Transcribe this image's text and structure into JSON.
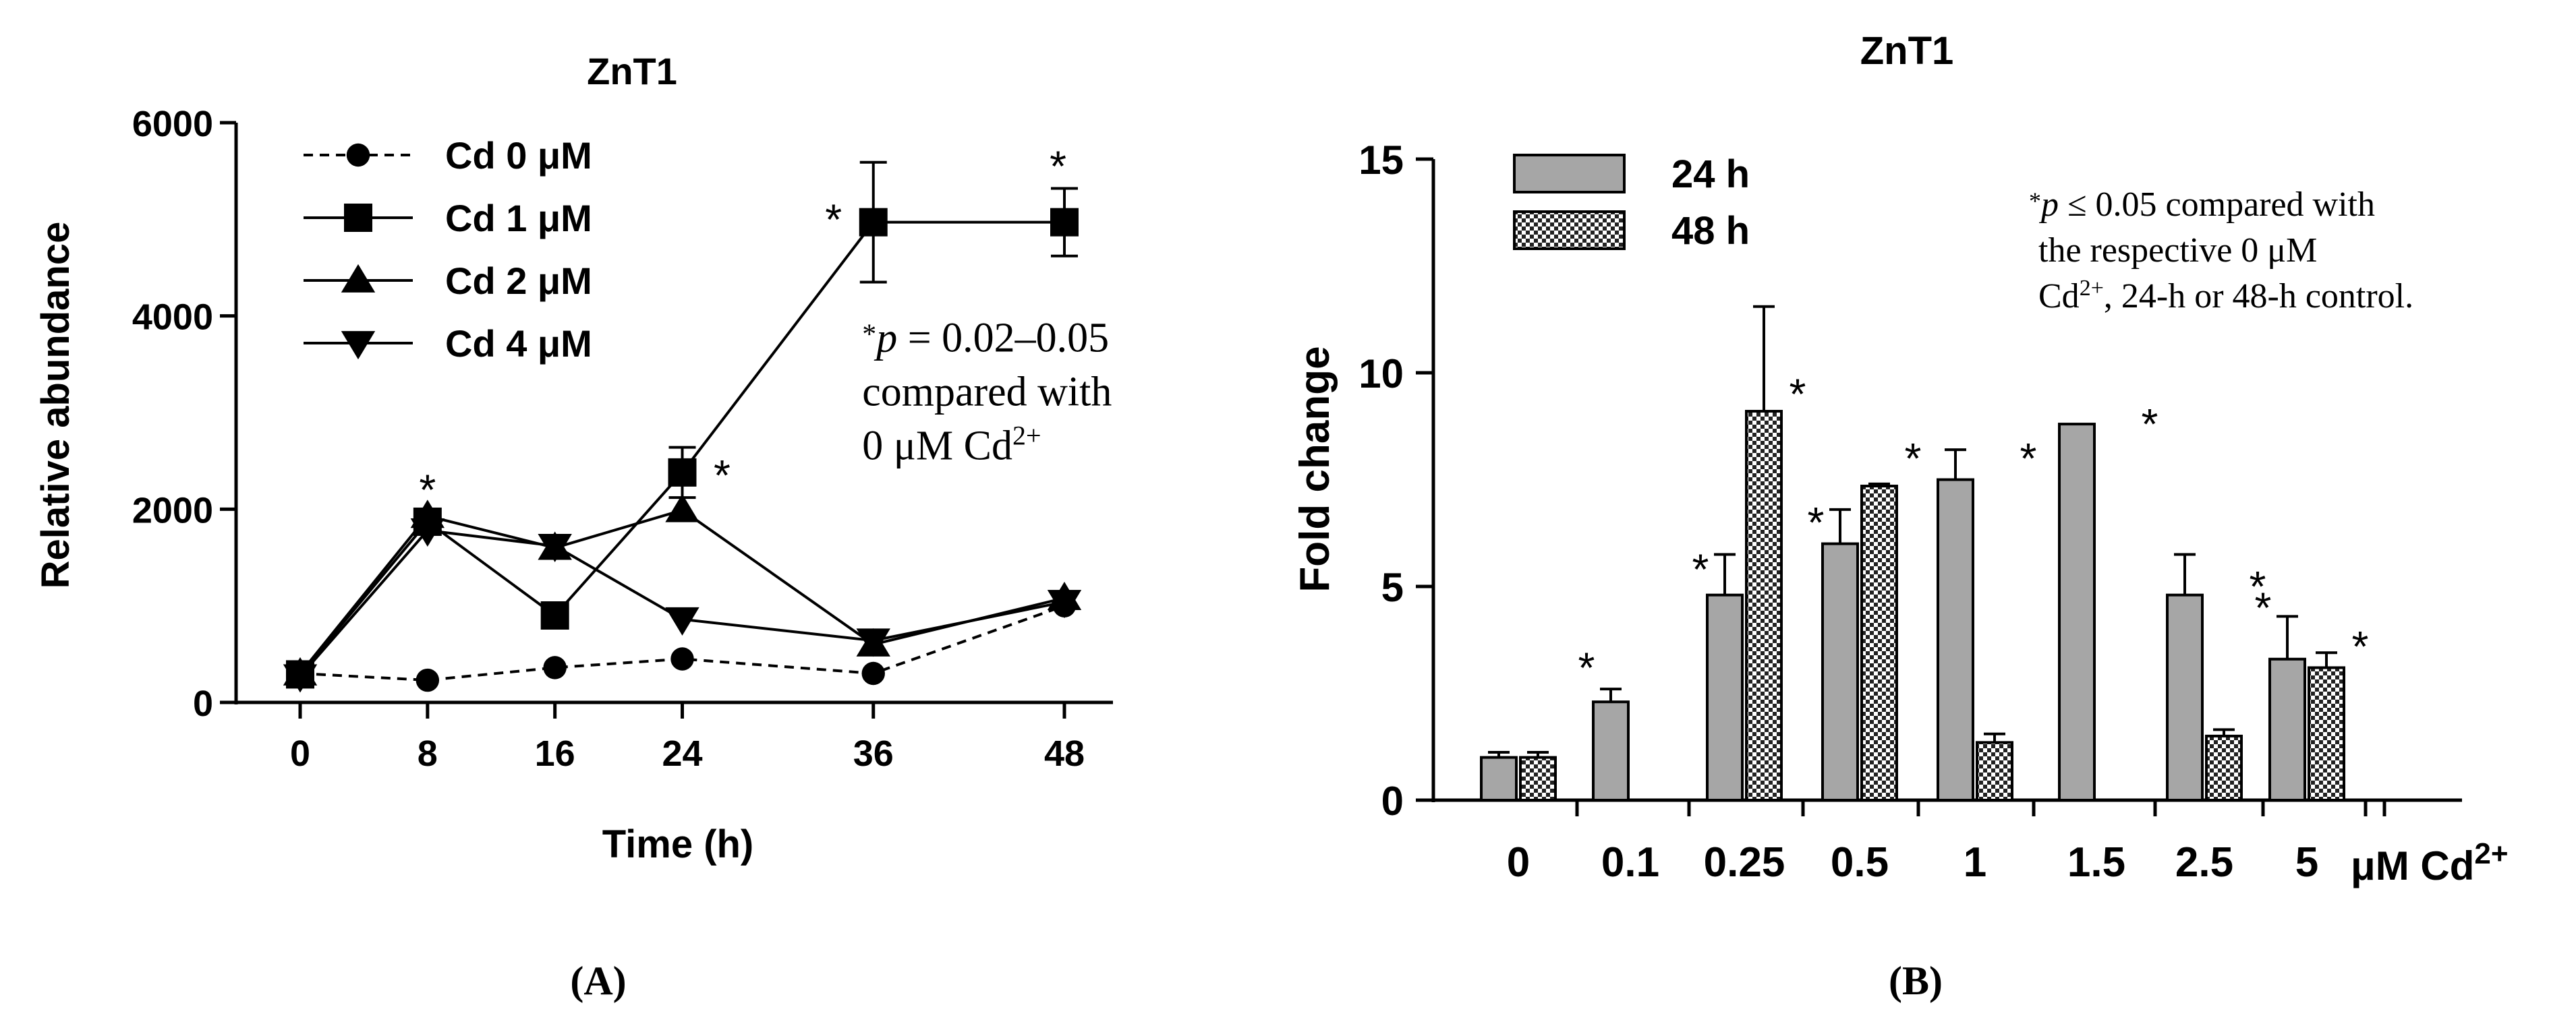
{
  "chart_data": [
    {
      "type": "line",
      "panel_label": "(A)",
      "title": "ZnT1",
      "xlabel": "Time (h)",
      "ylabel": "Relative abundance",
      "xlim": [
        0,
        48
      ],
      "ylim": [
        0,
        6000
      ],
      "x_ticks": [
        0,
        8,
        16,
        24,
        36,
        48
      ],
      "y_ticks": [
        0,
        2000,
        4000,
        6000
      ],
      "legend_position": "top-left",
      "series": [
        {
          "name": "Cd 0 μM",
          "marker": "circle",
          "dashed": true,
          "x": [
            0,
            8,
            16,
            24,
            36,
            48
          ],
          "y": [
            300,
            230,
            360,
            450,
            300,
            1000
          ],
          "err": [
            0,
            0,
            0,
            0,
            0,
            0
          ]
        },
        {
          "name": "Cd 1 μM",
          "marker": "square",
          "dashed": false,
          "x": [
            0,
            8,
            16,
            24,
            36,
            48
          ],
          "y": [
            290,
            1870,
            900,
            2380,
            4970,
            4970
          ],
          "err": [
            0,
            0,
            0,
            260,
            620,
            350
          ]
        },
        {
          "name": "Cd 2 μM",
          "marker": "triangle-up",
          "dashed": false,
          "x": [
            0,
            8,
            16,
            24,
            36,
            48
          ],
          "y": [
            300,
            1930,
            1600,
            1990,
            600,
            1080
          ],
          "err": [
            0,
            0,
            0,
            0,
            0,
            0
          ]
        },
        {
          "name": "Cd 4 μM",
          "marker": "triangle-down",
          "dashed": false,
          "x": [
            0,
            8,
            16,
            24,
            36,
            48
          ],
          "y": [
            270,
            1780,
            1620,
            860,
            640,
            1040
          ],
          "err": [
            0,
            0,
            0,
            0,
            0,
            0
          ]
        }
      ],
      "significance_marks": [
        {
          "x": 8,
          "y": 2200,
          "text": "*"
        },
        {
          "x": 26.5,
          "y": 2350,
          "text": "*"
        },
        {
          "x": 33.5,
          "y": 5000,
          "text": "*"
        },
        {
          "x": 47.6,
          "y": 5550,
          "text": "*"
        }
      ],
      "annotation": {
        "line1_prefix": "*",
        "line1_italic": "p",
        "line1_rest": " = 0.02–0.05",
        "line2": "compared with",
        "line3_main": "0 μM Cd",
        "line3_sup": "2+",
        "x": 35.3,
        "y": 3630
      }
    },
    {
      "type": "bar",
      "panel_label": "(B)",
      "title": "ZnT1",
      "xlabel": "",
      "ylabel": "Fold change",
      "ylim": [
        0,
        15
      ],
      "y_ticks": [
        0,
        5,
        10,
        15
      ],
      "categories": [
        "0",
        "0.1",
        "0.25",
        "0.5",
        "1",
        "1.5",
        "2.5",
        "5"
      ],
      "axis_end_label": "μM Cd",
      "axis_end_sup": "2+",
      "legend_position": "top-left",
      "series": [
        {
          "name": "24 h",
          "pattern": "gray",
          "values": [
            1.0,
            2.3,
            4.8,
            6.0,
            7.5,
            8.8,
            4.8,
            3.3
          ],
          "err": [
            0.12,
            0.3,
            0.95,
            0.8,
            0.7,
            0,
            0.95,
            1.0
          ]
        },
        {
          "name": "48 h",
          "pattern": "checker",
          "values": [
            1.0,
            null,
            9.1,
            7.35,
            1.35,
            null,
            1.5,
            3.1
          ],
          "err": [
            0.12,
            null,
            2.45,
            0.05,
            0.2,
            null,
            0.15,
            0.35
          ]
        }
      ],
      "significance_marks": [
        {
          "category": 1,
          "series": 0,
          "y": 3.1,
          "text": "*"
        },
        {
          "category": 2,
          "series": 0,
          "y": 5.4,
          "text": "*"
        },
        {
          "category": 2,
          "series": 1,
          "y": 9.5,
          "text": "*"
        },
        {
          "category": 3,
          "series": 0,
          "y": 6.5,
          "text": "*"
        },
        {
          "category": 3,
          "series": 1,
          "y": 8.0,
          "text": "*"
        },
        {
          "category": 4,
          "series": 1,
          "y": 8.0,
          "text": "*"
        },
        {
          "category": 5,
          "series": 1,
          "y": 8.8,
          "text": "*"
        },
        {
          "category": 6,
          "series": 1,
          "y": 5.0,
          "text": "*"
        },
        {
          "category": 7,
          "series": 0,
          "y": 4.5,
          "text": "*"
        },
        {
          "category": 7,
          "series": 1,
          "y": 3.6,
          "text": "*"
        }
      ],
      "annotation": {
        "line1_prefix": "*",
        "line1_italic": "p",
        "line1_rest": " ≤ 0.05 compared with",
        "line2": "the respective 0 μM",
        "line3_main": "Cd",
        "line3_sup": "2+",
        "line3_rest": ", 24-h or 48-h control."
      }
    }
  ]
}
